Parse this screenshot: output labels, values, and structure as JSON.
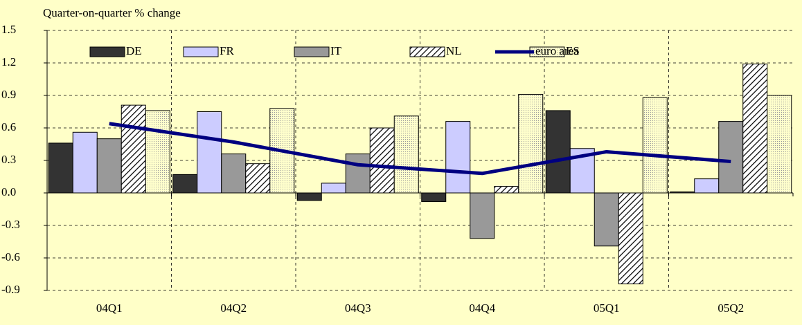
{
  "chart_data": {
    "type": "bar",
    "y_label": "Quarter-on-quarter % change",
    "categories": [
      "04Q1",
      "04Q2",
      "04Q3",
      "04Q4",
      "05Q1",
      "05Q2"
    ],
    "series": [
      {
        "name": "DE",
        "color": "#333333",
        "values": [
          0.46,
          0.17,
          -0.07,
          -0.08,
          0.76,
          0.01
        ]
      },
      {
        "name": "FR",
        "color": "#ccccff",
        "values": [
          0.56,
          0.75,
          0.09,
          0.66,
          0.41,
          0.13
        ]
      },
      {
        "name": "IT",
        "color": "#999999",
        "values": [
          0.5,
          0.36,
          0.36,
          -0.42,
          -0.49,
          0.66
        ]
      },
      {
        "name": "NL",
        "color": "#ffffff",
        "pattern": "hatch",
        "values": [
          0.81,
          0.27,
          0.6,
          0.06,
          -0.84,
          1.19
        ]
      },
      {
        "name": "ES",
        "color": "#ffffcc",
        "pattern": "dots",
        "values": [
          0.76,
          0.78,
          0.71,
          0.91,
          0.88,
          0.9
        ]
      },
      {
        "name": "euro area",
        "type": "line",
        "color": "#000080",
        "values": [
          0.64,
          0.47,
          0.26,
          0.18,
          0.38,
          0.29
        ]
      }
    ],
    "ylim": [
      -0.9,
      1.5
    ],
    "yticks": [
      1.5,
      1.2,
      0.9,
      0.6,
      0.3,
      {
        "value": 0,
        "label": "0.0"
      },
      -0.3,
      -0.6,
      -0.9
    ],
    "grid": true
  }
}
